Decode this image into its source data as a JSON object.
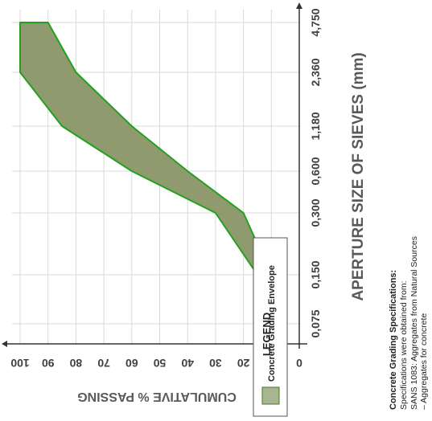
{
  "chart_data": {
    "type": "area",
    "orientation": "rotated",
    "categories": [
      "0,075",
      "0,150",
      "0,300",
      "0,600",
      "1,180",
      "2,360",
      "4,750"
    ],
    "series": [
      {
        "name": "Concrete Grading Envelope",
        "role": "upper_limit",
        "values": [
          7,
          15,
          30,
          60,
          85,
          100,
          100
        ]
      },
      {
        "name": "Concrete Grading Envelope",
        "role": "lower_limit",
        "values": [
          5,
          10,
          20,
          40,
          60,
          80,
          90
        ]
      }
    ],
    "xlabel": "APERTURE SIZE OF SIEVES (mm)",
    "ylabel": "CUMULATIVE % PASSING",
    "ylim": [
      0,
      100
    ],
    "yticks": [
      "0",
      "10",
      "20",
      "30",
      "40",
      "50",
      "60",
      "70",
      "80",
      "90",
      "100"
    ],
    "grid": true,
    "fill_color": "#8f9a6f",
    "line_color": "#22a01e"
  },
  "legend": {
    "title": "LEGEND",
    "item_label": "Concrete Grading Envelope",
    "swatch_fill": "#a9b591",
    "swatch_stroke": "#3e7a2a"
  },
  "spec_note": {
    "title": "Concrete Grading Specifications:",
    "line1": "Specifications were obtained from:",
    "line2": "SANS 1083: Aggregates from Natural Sources",
    "line3": "– Aggregates for concrete"
  }
}
